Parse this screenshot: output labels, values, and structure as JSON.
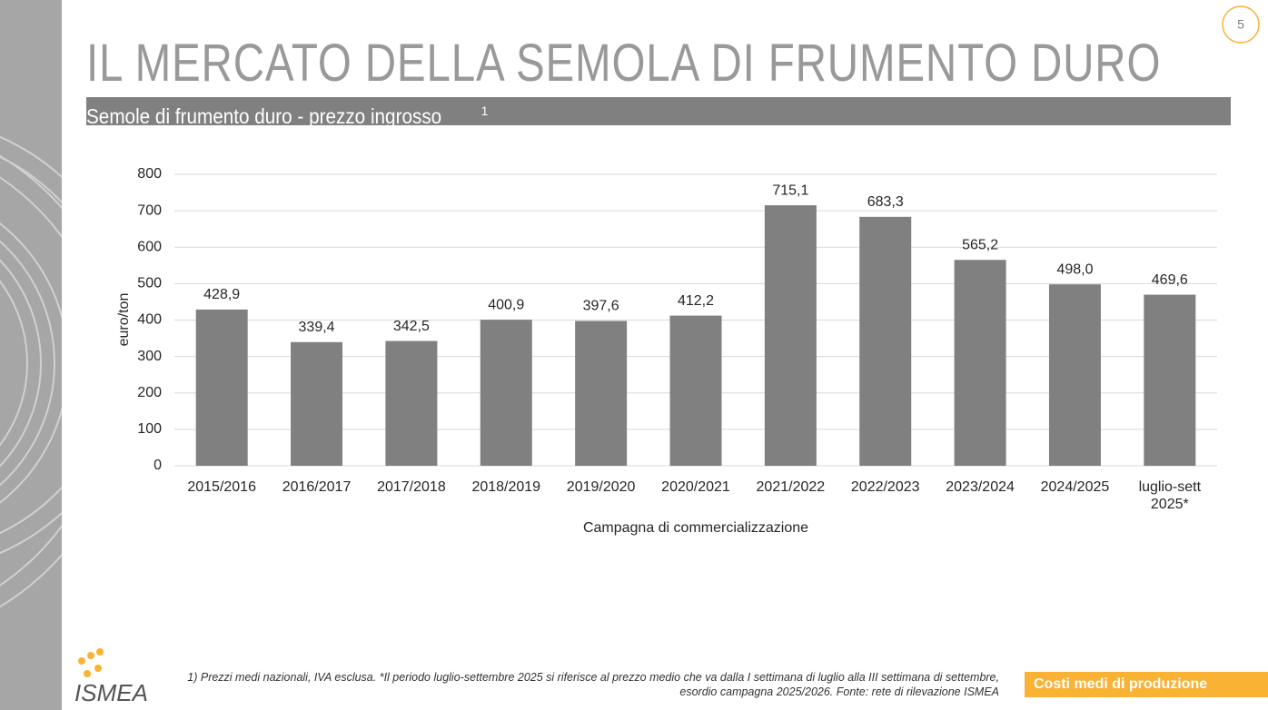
{
  "slide": {
    "title": "IL MERCATO DELLA SEMOLA DI FRUMENTO DURO",
    "subtitle": "Semole di frumento duro - prezzo ingrosso",
    "subtitle_note": "1",
    "page_number": "5",
    "footnote": [
      "1) Prezzi medi nazionali, IVA esclusa. *Il periodo luglio-settembre 2025 si riferisce al prezzo medio che va dalla I settimana di luglio alla III settimana di settembre,",
      "esordio campagna 2025/2026. Fonte: rete di rilevazione ISMEA"
    ],
    "section_tag": "Costi medi di produzione",
    "logo": "ISMEA"
  },
  "chart_data": {
    "type": "bar",
    "categories": [
      "2015/2016",
      "2016/2017",
      "2017/2018",
      "2018/2019",
      "2019/2020",
      "2020/2021",
      "2021/2022",
      "2022/2023",
      "2023/2024",
      "2024/2025",
      "luglio-sett 2025*"
    ],
    "values": [
      428.9,
      339.4,
      342.5,
      400.9,
      397.6,
      412.2,
      715.1,
      683.3,
      565.2,
      498.0,
      469.6
    ],
    "value_labels": [
      "428,9",
      "339,4",
      "342,5",
      "400,9",
      "397,6",
      "412,2",
      "715,1",
      "683,3",
      "565,2",
      "498,0",
      "469,6"
    ],
    "color": "#808080",
    "ylabel": "euro/ton",
    "xlabel": "Campagna di commercializzazione",
    "ylim": [
      0,
      800
    ],
    "yticks": [
      0,
      100,
      200,
      300,
      400,
      500,
      600,
      700,
      800
    ],
    "grid": true
  }
}
